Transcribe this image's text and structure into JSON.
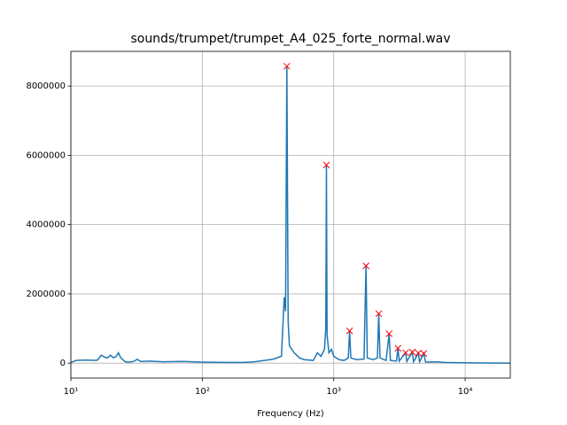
{
  "chart_data": {
    "type": "line",
    "title": "sounds/trumpet/trumpet_A4_025_forte_normal.wav",
    "x_label": "Frequency (Hz)",
    "x": [
      10,
      11,
      13,
      15,
      16,
      17,
      18,
      19,
      20,
      21,
      22,
      23,
      24,
      26,
      28,
      30,
      32,
      34,
      40,
      50,
      70,
      100,
      150,
      200,
      250,
      300,
      350,
      400,
      420,
      430,
      440,
      450,
      460,
      480,
      500,
      550,
      600,
      700,
      750,
      800,
      850,
      870,
      880,
      890,
      920,
      960,
      1000,
      1100,
      1200,
      1290,
      1320,
      1350,
      1500,
      1700,
      1760,
      1800,
      2000,
      2150,
      2200,
      2250,
      2500,
      2640,
      2700,
      3000,
      3080,
      3150,
      3520,
      3600,
      3960,
      4050,
      4400,
      4500,
      4840,
      5000,
      6000,
      7000,
      10000,
      15000,
      22050
    ],
    "values": [
      20000,
      80000,
      90000,
      80000,
      90000,
      230000,
      180000,
      150000,
      230000,
      160000,
      180000,
      300000,
      150000,
      40000,
      30000,
      50000,
      110000,
      50000,
      60000,
      40000,
      50000,
      30000,
      20000,
      20000,
      40000,
      80000,
      120000,
      200000,
      1900000,
      1500000,
      8570000,
      1200000,
      500000,
      400000,
      300000,
      150000,
      100000,
      80000,
      300000,
      200000,
      400000,
      1000000,
      5720000,
      800000,
      300000,
      400000,
      200000,
      100000,
      80000,
      150000,
      930000,
      150000,
      100000,
      120000,
      2810000,
      150000,
      100000,
      150000,
      1430000,
      150000,
      80000,
      850000,
      80000,
      60000,
      430000,
      60000,
      300000,
      50000,
      320000,
      40000,
      290000,
      40000,
      280000,
      30000,
      40000,
      20000,
      10000,
      5000,
      2000
    ],
    "color": "#1f77b4",
    "peaks": {
      "x": [
        440,
        880,
        1320,
        1760,
        2200,
        2640,
        3080,
        3520,
        3960,
        4400,
        4840
      ],
      "values": [
        8570000,
        5720000,
        930000,
        2810000,
        1430000,
        850000,
        430000,
        300000,
        320000,
        290000,
        280000
      ],
      "color": "#ff0000"
    },
    "xscale": "log",
    "xlim": [
      10,
      22050
    ],
    "xticks": [
      {
        "value": 10,
        "label": "10¹"
      },
      {
        "value": 100,
        "label": "10²"
      },
      {
        "value": 1000,
        "label": "10³"
      },
      {
        "value": 10000,
        "label": "10⁴"
      }
    ],
    "ylim": [
      -430000,
      9000000
    ],
    "yticks": [
      0,
      2000000,
      4000000,
      6000000,
      8000000
    ],
    "grid": true
  }
}
